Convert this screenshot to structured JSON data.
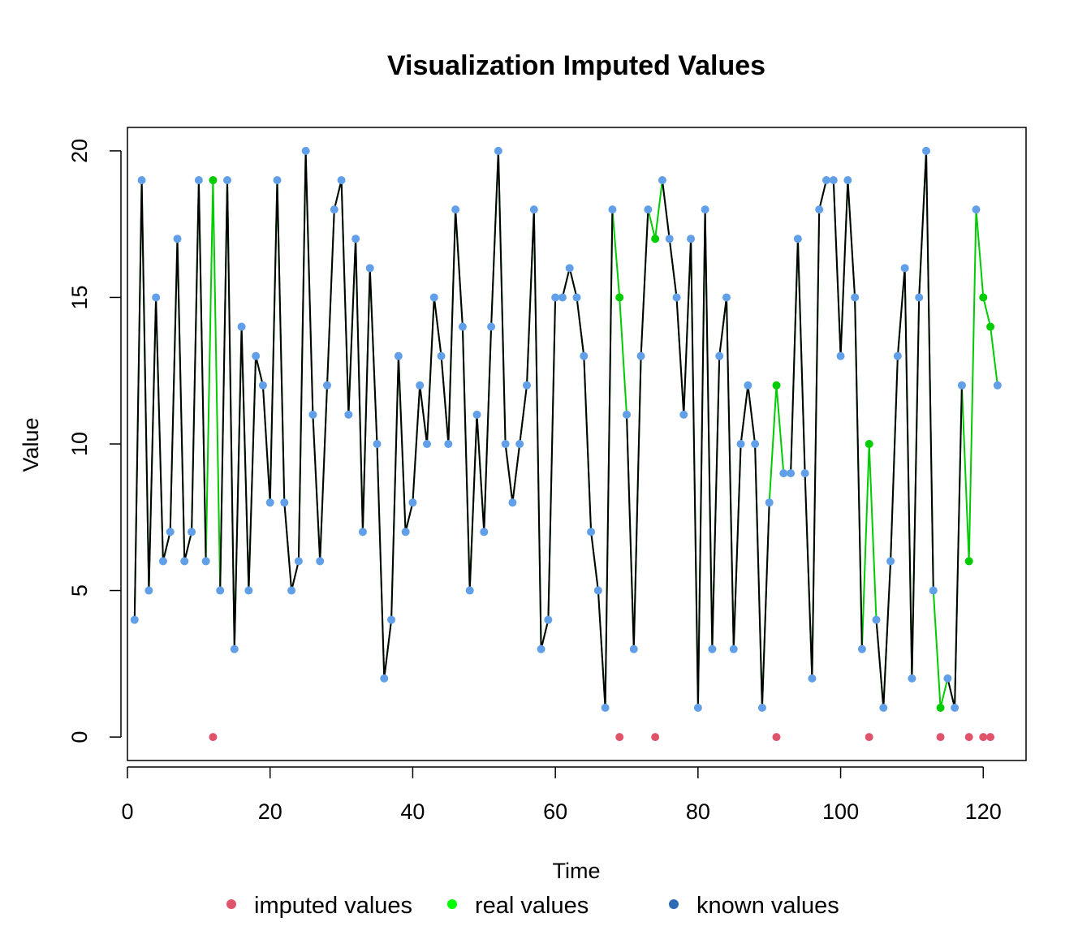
{
  "chart_data": {
    "type": "line",
    "title": "Visualization Imputed Values",
    "xlabel": "Time",
    "ylabel": "Value",
    "xlim": [
      0,
      126
    ],
    "ylim": [
      -0.8,
      20.8
    ],
    "x_ticks": [
      0,
      20,
      40,
      60,
      80,
      100,
      120
    ],
    "y_ticks": [
      0,
      5,
      10,
      15,
      20
    ],
    "legend_position": "bottom",
    "legend": [
      "imputed values",
      "real values",
      "known values"
    ],
    "colors": {
      "imputed": "#df536b",
      "real": "#00cc00",
      "known": "#61a0e8",
      "known_legend": "#2f6ab5",
      "real_legend": "#00ff00",
      "known_line": "#000000"
    },
    "known_values": [
      4,
      19,
      5,
      15,
      6,
      7,
      17,
      6,
      7,
      19,
      6,
      null,
      5,
      19,
      3,
      14,
      5,
      13,
      12,
      8,
      19,
      8,
      5,
      6,
      20,
      11,
      6,
      12,
      18,
      19,
      11,
      17,
      7,
      16,
      10,
      2,
      4,
      13,
      7,
      8,
      12,
      10,
      15,
      13,
      10,
      18,
      14,
      5,
      11,
      7,
      14,
      20,
      10,
      8,
      10,
      12,
      18,
      3,
      4,
      15,
      15,
      16,
      15,
      13,
      7,
      5,
      1,
      18,
      null,
      11,
      3,
      13,
      18,
      null,
      19,
      17,
      15,
      11,
      17,
      1,
      18,
      3,
      13,
      15,
      3,
      10,
      12,
      10,
      1,
      8,
      null,
      9,
      9,
      17,
      9,
      2,
      18,
      19,
      19,
      13,
      19,
      15,
      3,
      null,
      4,
      1,
      6,
      13,
      16,
      2,
      15,
      20,
      5,
      null,
      2,
      1,
      12,
      null,
      18,
      null,
      null,
      12
    ],
    "real_values": [
      4,
      19,
      5,
      15,
      6,
      7,
      17,
      6,
      7,
      19,
      6,
      19,
      5,
      19,
      3,
      14,
      5,
      13,
      12,
      8,
      19,
      8,
      5,
      6,
      20,
      11,
      6,
      12,
      18,
      19,
      11,
      17,
      7,
      16,
      10,
      2,
      4,
      13,
      7,
      8,
      12,
      10,
      15,
      13,
      10,
      18,
      14,
      5,
      11,
      7,
      14,
      20,
      10,
      8,
      10,
      12,
      18,
      3,
      4,
      15,
      15,
      16,
      15,
      13,
      7,
      5,
      1,
      18,
      15,
      11,
      3,
      13,
      18,
      17,
      19,
      17,
      15,
      11,
      17,
      1,
      18,
      3,
      13,
      15,
      3,
      10,
      12,
      10,
      1,
      8,
      12,
      9,
      9,
      17,
      9,
      2,
      18,
      19,
      19,
      13,
      19,
      15,
      3,
      10,
      4,
      1,
      6,
      13,
      16,
      2,
      15,
      20,
      5,
      1,
      2,
      1,
      12,
      6,
      18,
      15,
      14,
      12
    ],
    "imputed_values": [
      null,
      null,
      null,
      null,
      null,
      null,
      null,
      null,
      null,
      null,
      null,
      0,
      null,
      null,
      null,
      null,
      null,
      null,
      null,
      null,
      null,
      null,
      null,
      null,
      null,
      null,
      null,
      null,
      null,
      null,
      null,
      null,
      null,
      null,
      null,
      null,
      null,
      null,
      null,
      null,
      null,
      null,
      null,
      null,
      null,
      null,
      null,
      null,
      null,
      null,
      null,
      null,
      null,
      null,
      null,
      null,
      null,
      null,
      null,
      null,
      null,
      null,
      null,
      null,
      null,
      null,
      null,
      null,
      0,
      null,
      null,
      null,
      null,
      0,
      null,
      null,
      null,
      null,
      null,
      null,
      null,
      null,
      null,
      null,
      null,
      null,
      null,
      null,
      null,
      null,
      0,
      null,
      null,
      null,
      null,
      null,
      null,
      null,
      null,
      null,
      null,
      null,
      null,
      0,
      null,
      null,
      null,
      null,
      null,
      null,
      null,
      null,
      null,
      0,
      null,
      null,
      null,
      0,
      null,
      0,
      0,
      null
    ]
  }
}
